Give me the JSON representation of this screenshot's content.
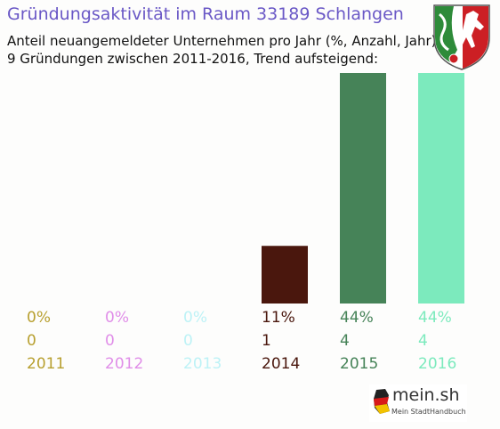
{
  "chart_data": {
    "type": "bar",
    "title": "Gründungsaktivität im Raum 33189 Schlangen",
    "subtitle_lines": [
      "Anteil neuangemeldeter Unternehmen pro Jahr (%, Anzahl, Jahr)",
      "9 Gründungen zwischen 2011-2016, Trend aufsteigend:"
    ],
    "categories": [
      "2011",
      "2012",
      "2013",
      "2014",
      "2015",
      "2016"
    ],
    "values": [
      0,
      0,
      0,
      1,
      4,
      4
    ],
    "percent_labels": [
      "0%",
      "0%",
      "0%",
      "11%",
      "44%",
      "44%"
    ],
    "count_labels": [
      "0",
      "0",
      "0",
      "1",
      "4",
      "4"
    ],
    "colors": [
      "#b8a030",
      "#e08ee8",
      "#bdf2f6",
      "#4a170d",
      "#468358",
      "#7ceabd"
    ],
    "ylim": [
      0,
      4
    ],
    "grid": false,
    "legend": "none"
  },
  "logo": {
    "text": "mein.sh",
    "tagline": "Mein StadtHandbuch",
    "colors": [
      "#222222",
      "#d81a1a",
      "#f2c200"
    ]
  },
  "crest": {
    "colors": [
      "#ffffff",
      "#2e8b3a",
      "#cc1f24",
      "#222222"
    ]
  }
}
